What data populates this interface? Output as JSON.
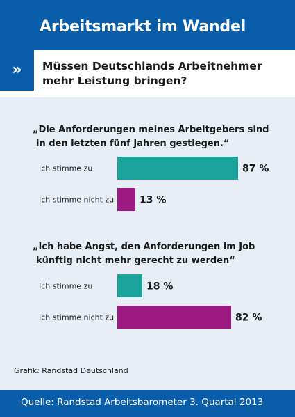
{
  "header": {
    "title": "Arbeitsmarkt im Wandel"
  },
  "subheader": {
    "icon": "double-chevron-right-icon",
    "glyph": "»",
    "question_line1": "Müssen Deutschlands Arbeitnehmer",
    "question_line2": "mehr Leistung bringen?"
  },
  "colors": {
    "brand_blue": "#0a5da8",
    "panel_bg": "#e7eef5",
    "agree": "#1aa39d",
    "disagree": "#9e1a83"
  },
  "chart_data": [
    {
      "type": "bar",
      "orientation": "horizontal",
      "title_line1": "„Die Anforderungen meines Arbeitgebers sind",
      "title_line2": "in den letzten fünf Jahren gestiegen.“",
      "categories": [
        "Ich stimme zu",
        "Ich stimme nicht zu"
      ],
      "values": [
        87,
        13
      ],
      "value_labels": [
        "87 %",
        "13 %"
      ],
      "xlim": [
        0,
        100
      ],
      "grid": false
    },
    {
      "type": "bar",
      "orientation": "horizontal",
      "title_line1": "„Ich habe Angst, den Anforderungen im Job",
      "title_line2": "künftig nicht mehr gerecht zu werden“",
      "categories": [
        "Ich stimme zu",
        "Ich stimme nicht zu"
      ],
      "values": [
        18,
        82
      ],
      "value_labels": [
        "18 %",
        "82 %"
      ],
      "xlim": [
        0,
        100
      ],
      "grid": false
    }
  ],
  "credit": "Grafik: Randstad Deutschland",
  "footer": {
    "source": "Quelle: Randstad Arbeitsbarometer 3. Quartal 2013"
  }
}
